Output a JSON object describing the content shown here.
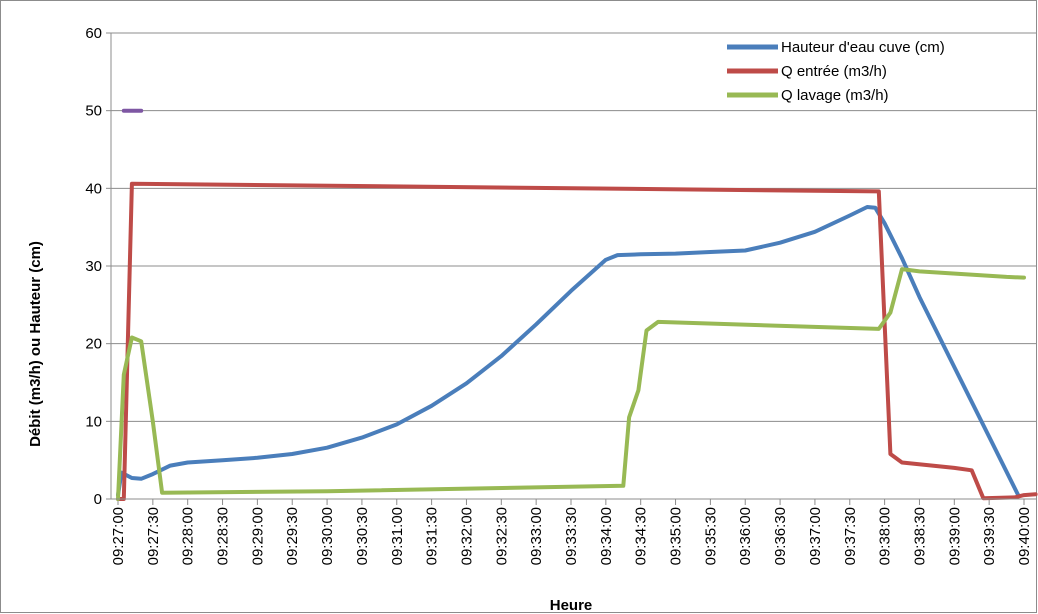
{
  "chart_data": {
    "type": "line",
    "title": "",
    "xlabel": "Heure",
    "ylabel": "Débit (m3/h) ou Hauteur (cm)",
    "ylim": [
      0,
      60
    ],
    "y_ticks": [
      "0",
      "10",
      "20",
      "30",
      "40",
      "50",
      "60"
    ],
    "x_range": [
      "09:27:00",
      "09:40:00"
    ],
    "x_ticks": [
      "09:27:00",
      "09:27:30",
      "09:28:00",
      "09:28:30",
      "09:29:00",
      "09:29:30",
      "09:30:00",
      "09:30:30",
      "09:31:00",
      "09:31:30",
      "09:32:00",
      "09:32:30",
      "09:33:00",
      "09:33:30",
      "09:34:00",
      "09:34:30",
      "09:35:00",
      "09:35:30",
      "09:36:00",
      "09:36:30",
      "09:37:00",
      "09:37:30",
      "09:38:00",
      "09:38:30",
      "09:39:00",
      "09:39:30",
      "09:40:00"
    ],
    "grid": "horizontal",
    "legend_position": "top-right",
    "series": [
      {
        "name": "Hauteur d'eau cuve (cm)",
        "color": "#4a7ebb",
        "points": [
          [
            "09:27:00",
            0.5
          ],
          [
            "09:27:03",
            3.4
          ],
          [
            "09:27:12",
            2.7
          ],
          [
            "09:27:20",
            2.6
          ],
          [
            "09:27:30",
            3.2
          ],
          [
            "09:27:45",
            4.3
          ],
          [
            "09:28:00",
            4.7
          ],
          [
            "09:28:30",
            5.0
          ],
          [
            "09:29:00",
            5.3
          ],
          [
            "09:29:30",
            5.8
          ],
          [
            "09:30:00",
            6.6
          ],
          [
            "09:30:30",
            7.9
          ],
          [
            "09:31:00",
            9.6
          ],
          [
            "09:31:30",
            12.0
          ],
          [
            "09:32:00",
            14.9
          ],
          [
            "09:32:30",
            18.4
          ],
          [
            "09:33:00",
            22.5
          ],
          [
            "09:33:30",
            26.8
          ],
          [
            "09:34:00",
            30.8
          ],
          [
            "09:34:10",
            31.4
          ],
          [
            "09:34:30",
            31.5
          ],
          [
            "09:35:00",
            31.6
          ],
          [
            "09:35:30",
            31.8
          ],
          [
            "09:36:00",
            32.0
          ],
          [
            "09:36:30",
            33.0
          ],
          [
            "09:37:00",
            34.4
          ],
          [
            "09:37:30",
            36.5
          ],
          [
            "09:37:45",
            37.6
          ],
          [
            "09:37:52",
            37.5
          ],
          [
            "09:38:00",
            35.5
          ],
          [
            "09:38:15",
            31.0
          ],
          [
            "09:38:30",
            26.0
          ],
          [
            "09:39:00",
            17.0
          ],
          [
            "09:39:30",
            8.0
          ],
          [
            "09:39:55",
            0.5
          ]
        ]
      },
      {
        "name": "Q entrée (m3/h)",
        "color": "#be4b48",
        "points": [
          [
            "09:27:00",
            0.0
          ],
          [
            "09:27:05",
            0.0
          ],
          [
            "09:27:12",
            40.6
          ],
          [
            "09:37:55",
            39.6
          ],
          [
            "09:38:05",
            5.8
          ],
          [
            "09:38:15",
            4.7
          ],
          [
            "09:39:00",
            4.0
          ],
          [
            "09:39:15",
            3.7
          ],
          [
            "09:39:25",
            0.1
          ],
          [
            "09:39:52",
            0.2
          ],
          [
            "09:40:00",
            0.5
          ],
          [
            "09:40:10",
            0.6
          ]
        ]
      },
      {
        "name": "Q lavage (m3/h)",
        "color": "#98b954",
        "points": [
          [
            "09:27:00",
            0.0
          ],
          [
            "09:27:05",
            16.0
          ],
          [
            "09:27:12",
            20.8
          ],
          [
            "09:27:20",
            20.3
          ],
          [
            "09:27:30",
            10.0
          ],
          [
            "09:27:38",
            0.8
          ],
          [
            "09:30:00",
            1.0
          ],
          [
            "09:34:15",
            1.7
          ],
          [
            "09:34:20",
            10.5
          ],
          [
            "09:34:28",
            14.0
          ],
          [
            "09:34:35",
            21.7
          ],
          [
            "09:34:45",
            22.8
          ],
          [
            "09:37:55",
            21.9
          ],
          [
            "09:38:05",
            24.0
          ],
          [
            "09:38:15",
            29.6
          ],
          [
            "09:38:30",
            29.3
          ],
          [
            "09:39:45",
            28.6
          ],
          [
            "09:40:00",
            28.5
          ]
        ]
      },
      {
        "name": "",
        "color": "#7e57a3",
        "points": [
          [
            "09:27:05",
            50.0
          ],
          [
            "09:27:20",
            50.0
          ]
        ]
      }
    ]
  }
}
